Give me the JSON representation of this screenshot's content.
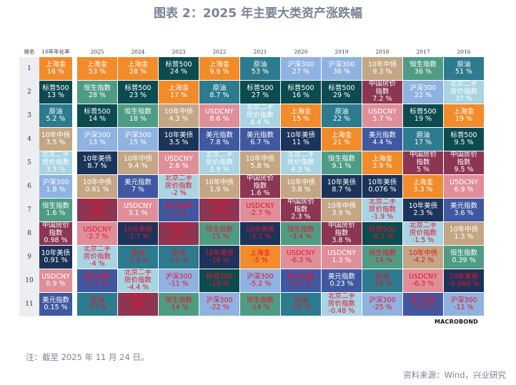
{
  "title": "图表 2：2025 年主要大类资产涨跌幅",
  "note": "注：截至 2025 年 11 月 24 日。",
  "source": "资料来源：Wind，兴业研究",
  "logo": "MACROBOND",
  "chart_data": {
    "type": "table",
    "headers": [
      "排名",
      "10年年化率",
      "2025",
      "2024",
      "2023",
      "2022",
      "2021",
      "2020",
      "2019",
      "2018",
      "2017",
      "2016"
    ],
    "ranks": [
      "1",
      "2",
      "3",
      "4",
      "5",
      "6",
      "7",
      "8",
      "9",
      "10",
      "11"
    ],
    "asset_colors": {
      "上海金": "#f28b2a",
      "标普500": "#0c4b50",
      "原油": "#2c7b8e",
      "10年中债": "#c3a684",
      "北京二手房价指数": "#a8d4e3",
      "沪深300": "#8fb2e0",
      "恒生指数": "#4f9c85",
      "中国房价指数": "#8c3653",
      "10年美债": "#1c3459",
      "USDCNY": "#df8f99",
      "美元指数": "#3f58a0"
    },
    "negative_text_color": "#e8132b",
    "columns": [
      [
        [
          "上海金",
          "16 %"
        ],
        [
          "标普500",
          "13 %"
        ],
        [
          "原油",
          "5.2 %"
        ],
        [
          "10年中债",
          "3.5 %"
        ],
        [
          "北京二手房价指数",
          "3.5 %"
        ],
        [
          "沪深300",
          "1.8 %"
        ],
        [
          "恒生指数",
          "1.6 %"
        ],
        [
          "中国房价指数",
          "0.98 %"
        ],
        [
          "10年美债",
          "0.91 %"
        ],
        [
          "USDCNY",
          "0.9 %"
        ],
        [
          "美元指数",
          "0.15 %"
        ]
      ],
      [
        [
          "上海金",
          "53 %"
        ],
        [
          "恒生指数",
          "28 %"
        ],
        [
          "标普500",
          "14 %"
        ],
        [
          "沪深300",
          "13 %"
        ],
        [
          "10年美债",
          "8.7 %"
        ],
        [
          "10年中债",
          "0.61 %"
        ],
        [
          "中国房价指数",
          "-2.2 %"
        ],
        [
          "USDCNY",
          "-2.7 %"
        ],
        [
          "北京二手房价指数",
          "-4 %"
        ],
        [
          "美元指数",
          "-7.7 %"
        ],
        [
          "原油",
          "-17 %"
        ]
      ],
      [
        [
          "上海金",
          "28 %"
        ],
        [
          "标普500",
          "23 %"
        ],
        [
          "恒生指数",
          "18 %"
        ],
        [
          "沪深300",
          "15 %"
        ],
        [
          "10年中债",
          "9.4 %"
        ],
        [
          "美元指数",
          "7 %"
        ],
        [
          "USDCNY",
          "3.1 %"
        ],
        [
          "10年美债",
          "-1.7 %"
        ],
        [
          "原油",
          "-2.9 %"
        ],
        [
          "北京二手房价指数",
          "-4.4 %"
        ],
        [
          "中国房价指数",
          "-6.8 %"
        ]
      ],
      [
        [
          "标普500",
          "24 %"
        ],
        [
          "上海金",
          "17 %"
        ],
        [
          "10年中债",
          "4.3 %"
        ],
        [
          "10年美债",
          "3.5 %"
        ],
        [
          "USDCNY",
          "2.6 %"
        ],
        [
          "北京二手房价指数",
          "-2 %"
        ],
        [
          "美元指数",
          "-2 %"
        ],
        [
          "中国房价指数",
          "-3.1 %"
        ],
        [
          "原油",
          "-10 %"
        ],
        [
          "沪深300",
          "-11 %"
        ],
        [
          "恒生指数",
          "-14 %"
        ]
      ],
      [
        [
          "上海金",
          "9.9 %"
        ],
        [
          "原油",
          "8.7 %"
        ],
        [
          "USDCNY",
          "8.6 %"
        ],
        [
          "美元指数",
          "7.8 %"
        ],
        [
          "北京二手房价指数",
          "3.9 %"
        ],
        [
          "10年中债",
          "1.9 %"
        ],
        [
          "中国房价指数",
          "-2.7 %"
        ],
        [
          "恒生指数",
          "-15 %"
        ],
        [
          "10年美债",
          "-16 %"
        ],
        [
          "标普500",
          "-19 %"
        ],
        [
          "沪深300",
          "-22 %"
        ]
      ],
      [
        [
          "原油",
          "53 %"
        ],
        [
          "标普500",
          "27 %"
        ],
        [
          "北京二手房价指数",
          "8.4 %"
        ],
        [
          "美元指数",
          "6.7 %"
        ],
        [
          "10年中债",
          "5.8 %"
        ],
        [
          "中国房价指数",
          "1.6 %"
        ],
        [
          "USDCNY",
          "-2.7 %"
        ],
        [
          "10年美债",
          "-3.7 %"
        ],
        [
          "上海金",
          "-5 %"
        ],
        [
          "沪深300",
          "-5.2 %"
        ],
        [
          "恒生指数",
          "-14 %"
        ]
      ],
      [
        [
          "沪深300",
          "27 %"
        ],
        [
          "标普500",
          "16 %"
        ],
        [
          "上海金",
          "15 %"
        ],
        [
          "10年美债",
          "11 %"
        ],
        [
          "北京二手房价指数",
          "6.3 %"
        ],
        [
          "10年中债",
          "3.8 %"
        ],
        [
          "中国房价指数",
          "2.3 %"
        ],
        [
          "恒生指数",
          "-3.4 %"
        ],
        [
          "USDCNY",
          "-6.3 %"
        ],
        [
          "美元指数",
          "-6.7 %"
        ],
        [
          "原油",
          "-22 %"
        ]
      ],
      [
        [
          "沪深300",
          "36 %"
        ],
        [
          "标普500",
          "29 %"
        ],
        [
          "原油",
          "22 %"
        ],
        [
          "上海金",
          "21 %"
        ],
        [
          "恒生指数",
          "9.1 %"
        ],
        [
          "10年美债",
          "8.7 %"
        ],
        [
          "10年中债",
          "3.9 %"
        ],
        [
          "中国房价指数",
          "3.8 %"
        ],
        [
          "USDCNY",
          "1.3 %"
        ],
        [
          "美元指数",
          "0.23 %"
        ],
        [
          "北京二手房价指数",
          "-0.48 %"
        ]
      ],
      [
        [
          "10年中债",
          "9.3 %"
        ],
        [
          "中国房价指数",
          "7.2 %"
        ],
        [
          "USDCNY",
          "5.7 %"
        ],
        [
          "美元指数",
          "4.4 %"
        ],
        [
          "上海金",
          "3.9 %"
        ],
        [
          "10年美债",
          "0.076 %"
        ],
        [
          "北京二手房价指数",
          "-1.9 %"
        ],
        [
          "标普500",
          "-6.2 %"
        ],
        [
          "恒生指数",
          "-14 %"
        ],
        [
          "原油",
          "-19 %"
        ],
        [
          "沪深300",
          "-25 %"
        ]
      ],
      [
        [
          "恒生指数",
          "36 %"
        ],
        [
          "沪深300",
          "22 %"
        ],
        [
          "标普500",
          "19 %"
        ],
        [
          "原油",
          "17 %"
        ],
        [
          "中国房价指数",
          "5 %"
        ],
        [
          "上海金",
          "3.3 %"
        ],
        [
          "10年美债",
          "2.3 %"
        ],
        [
          "北京二手房价指数",
          "-1.5 %"
        ],
        [
          "10年中债",
          "-4.2 %"
        ],
        [
          "USDCNY",
          "-6.3 %"
        ],
        [
          "美元指数",
          "-9.9 %"
        ]
      ],
      [
        [
          "原油",
          "51 %"
        ],
        [
          "北京二手房价指数",
          "37 %"
        ],
        [
          "上海金",
          "19 %"
        ],
        [
          "标普500",
          "9.5 %"
        ],
        [
          "中国房价指数",
          "9.5 %"
        ],
        [
          "USDCNY",
          "6.9 %"
        ],
        [
          "美元指数",
          "3.6 %"
        ],
        [
          "10年中债",
          "1.3 %"
        ],
        [
          "恒生指数",
          "0.39 %"
        ],
        [
          "10年美债",
          "-0.060 %"
        ],
        [
          "沪深300",
          "-11 %"
        ]
      ]
    ]
  }
}
